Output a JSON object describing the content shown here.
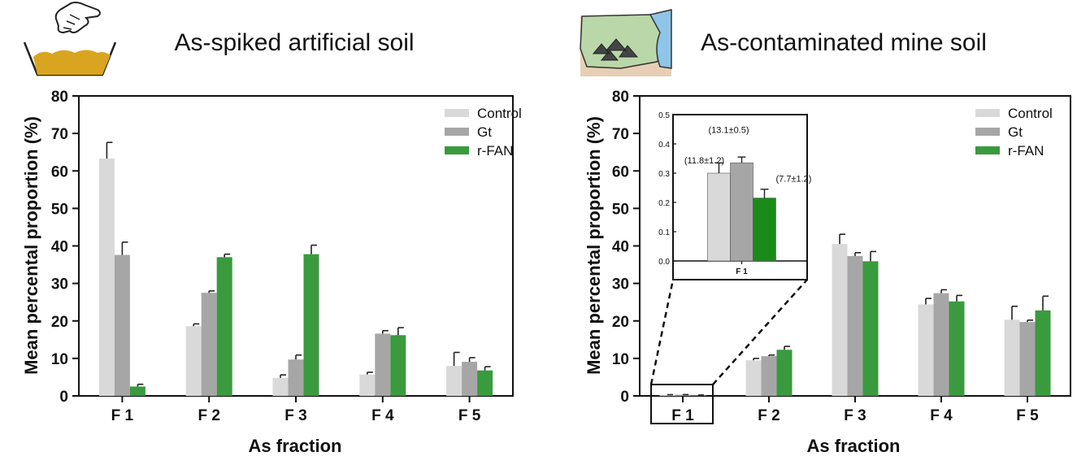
{
  "colors": {
    "control": "#d9d9d9",
    "gt": "#a6a6a6",
    "rfan": "#3a9a3e",
    "rfan_inset": "#1a8a1a",
    "soil": "#d9a520",
    "mine_green": "#b9d7a8",
    "water": "#8ec5e8",
    "ground": "#e6cfb4"
  },
  "icons": {
    "left": "hand-over-soil-container-icon",
    "right": "mine-landscape-icon"
  },
  "chart_data": [
    {
      "type": "bar",
      "title": "As-spiked artificial soil",
      "xlabel": "As fraction",
      "ylabel": "Mean percental proportion (%)",
      "ylim": [
        0,
        80
      ],
      "yticks": [
        0,
        10,
        20,
        30,
        40,
        50,
        60,
        70,
        80
      ],
      "categories": [
        "F 1",
        "F 2",
        "F 3",
        "F 4",
        "F 5"
      ],
      "legend_position": "top-right",
      "series": [
        {
          "name": "Control",
          "values": [
            63.3,
            18.6,
            4.8,
            5.7,
            8.0
          ],
          "errors": [
            4.3,
            0.6,
            0.8,
            0.6,
            3.6
          ]
        },
        {
          "name": "Gt",
          "values": [
            37.6,
            27.5,
            9.7,
            16.6,
            9.1
          ],
          "errors": [
            3.4,
            0.5,
            1.2,
            0.8,
            1.1
          ]
        },
        {
          "name": "r-FAN",
          "values": [
            2.5,
            37.0,
            37.8,
            16.2,
            6.8
          ],
          "errors": [
            0.6,
            0.8,
            2.4,
            2.0,
            1.0
          ]
        }
      ]
    },
    {
      "type": "bar",
      "title": "As-contaminated mine soil",
      "xlabel": "As fraction",
      "ylabel": "Mean percental proportion (%)",
      "ylim": [
        0,
        80
      ],
      "yticks": [
        0,
        10,
        20,
        30,
        40,
        50,
        60,
        70,
        80
      ],
      "categories": [
        "F 1",
        "F 2",
        "F 3",
        "F 4",
        "F 5"
      ],
      "legend_position": "top-right",
      "series": [
        {
          "name": "Control",
          "values": [
            0.3,
            9.5,
            40.5,
            24.4,
            20.3
          ],
          "errors": [
            0.03,
            0.5,
            2.6,
            1.6,
            3.6
          ]
        },
        {
          "name": "Gt",
          "values": [
            0.33,
            10.6,
            37.3,
            27.4,
            19.7
          ],
          "errors": [
            0.02,
            0.3,
            0.9,
            0.9,
            0.5
          ]
        },
        {
          "name": "r-FAN",
          "values": [
            0.21,
            12.3,
            35.9,
            25.2,
            22.8
          ],
          "errors": [
            0.03,
            0.9,
            2.6,
            1.6,
            3.8
          ]
        }
      ],
      "inset": {
        "category": "F 1",
        "ylim": [
          0,
          0.5
        ],
        "yticks": [
          "0.0",
          "0.1",
          "0.2",
          "0.3",
          "0.4",
          "0.5"
        ],
        "values": [
          0.3,
          0.335,
          0.215
        ],
        "errors": [
          0.035,
          0.02,
          0.03
        ],
        "labels": [
          "(11.8±1.2)",
          "(13.1±0.5)",
          "(7.7±1.2)"
        ]
      }
    }
  ]
}
